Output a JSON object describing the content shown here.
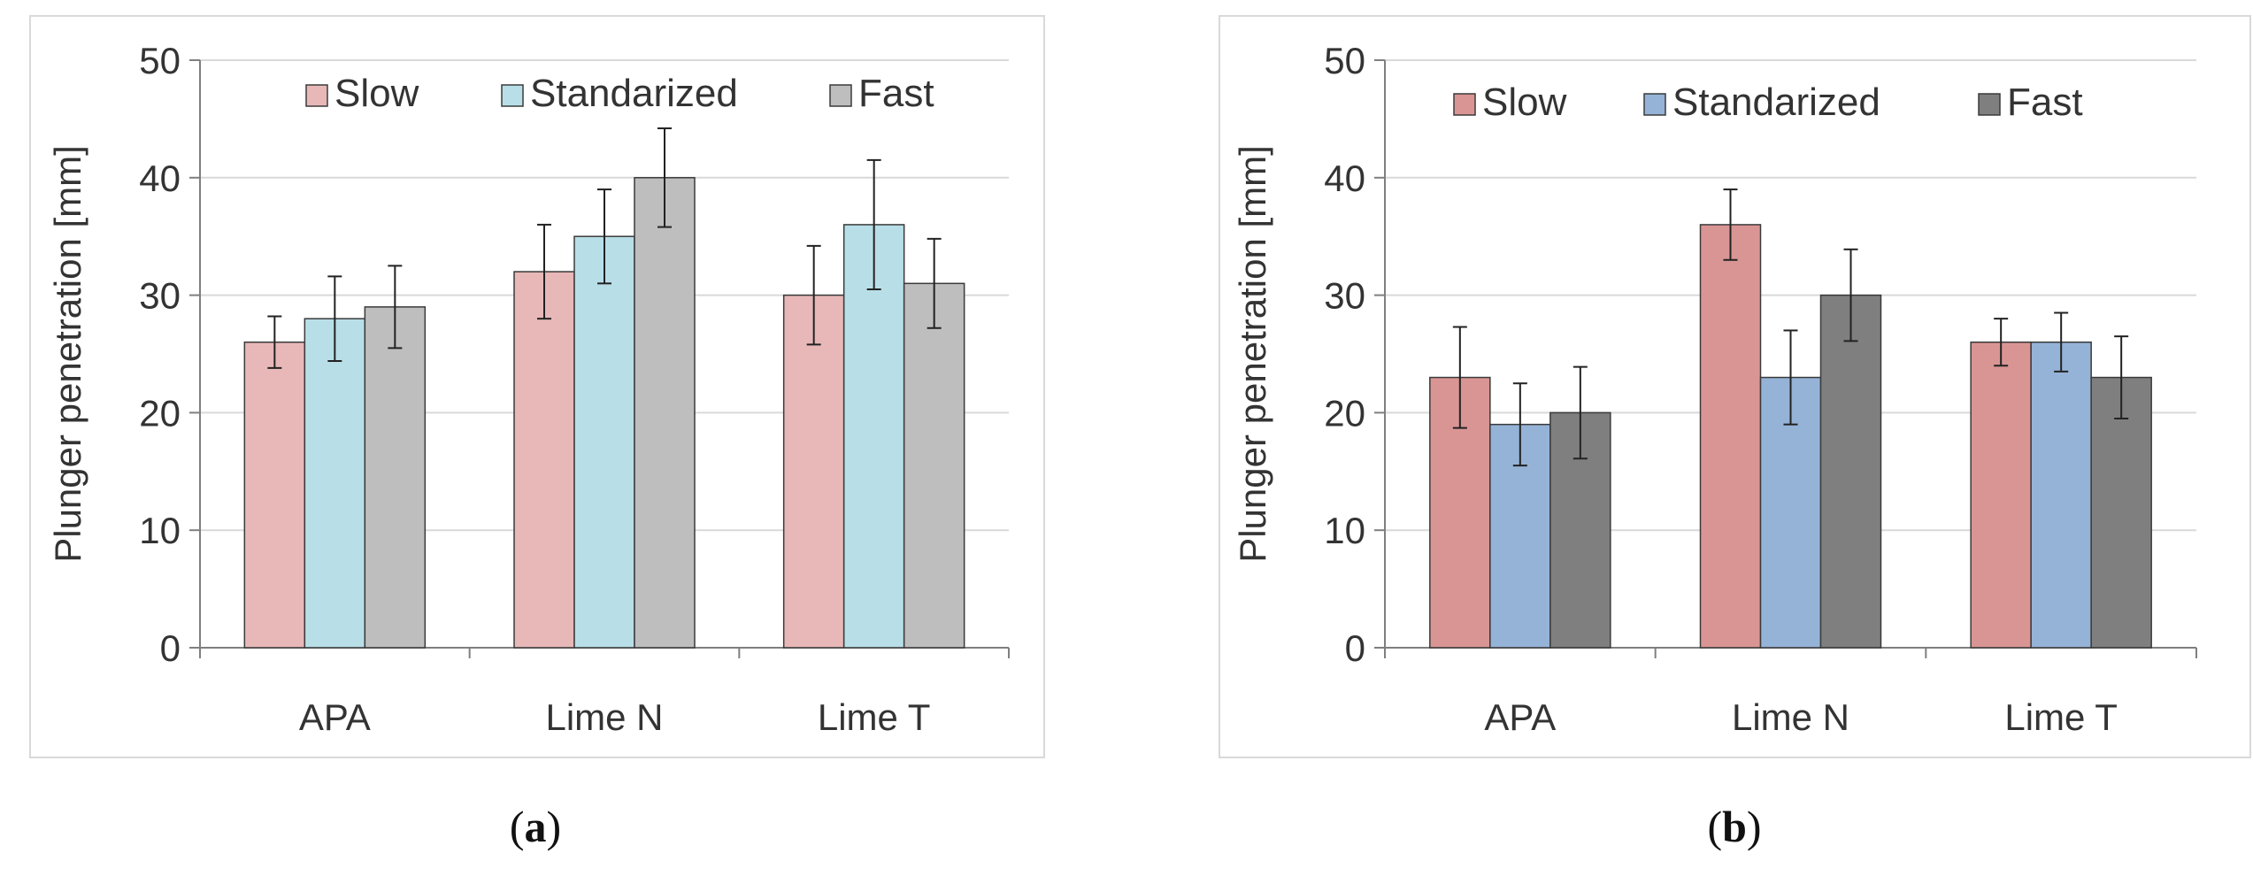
{
  "chart_data": [
    {
      "type": "bar",
      "panel": "a",
      "caption": "a",
      "categories": [
        "APA",
        "Lime N",
        "Lime T"
      ],
      "ylabel": "Plunger penetration [mm]",
      "xlabel": "",
      "ylim": [
        0,
        50
      ],
      "yticks": [
        0,
        10,
        20,
        30,
        40,
        50
      ],
      "grid": true,
      "legend_position": "top-right",
      "series": [
        {
          "name": "Slow",
          "values": [
            26,
            32,
            30
          ],
          "errors": [
            2.2,
            4.0,
            4.2
          ],
          "color": "#e8b8b8"
        },
        {
          "name": "Standarized",
          "values": [
            28,
            35,
            36
          ],
          "errors": [
            3.6,
            4.0,
            5.5
          ],
          "color": "#b8dfe8"
        },
        {
          "name": "Fast",
          "values": [
            29,
            40,
            31
          ],
          "errors": [
            3.5,
            4.2,
            3.8
          ],
          "color": "#bebebe"
        }
      ]
    },
    {
      "type": "bar",
      "panel": "b",
      "caption": "b",
      "categories": [
        "APA",
        "Lime N",
        "Lime T"
      ],
      "ylabel": "Plunger penetration [mm]",
      "xlabel": "",
      "ylim": [
        0,
        50
      ],
      "yticks": [
        0,
        10,
        20,
        30,
        40,
        50
      ],
      "grid": true,
      "legend_position": "top",
      "series": [
        {
          "name": "Slow",
          "values": [
            23,
            36,
            26
          ],
          "errors": [
            4.3,
            3.0,
            2.0
          ],
          "color": "#d99594"
        },
        {
          "name": "Standarized",
          "values": [
            19,
            23,
            26
          ],
          "errors": [
            3.5,
            4.0,
            2.5
          ],
          "color": "#95b3d7"
        },
        {
          "name": "Fast",
          "values": [
            20,
            30,
            23
          ],
          "errors": [
            3.9,
            3.9,
            3.5
          ],
          "color": "#7f7f7f"
        }
      ]
    }
  ]
}
